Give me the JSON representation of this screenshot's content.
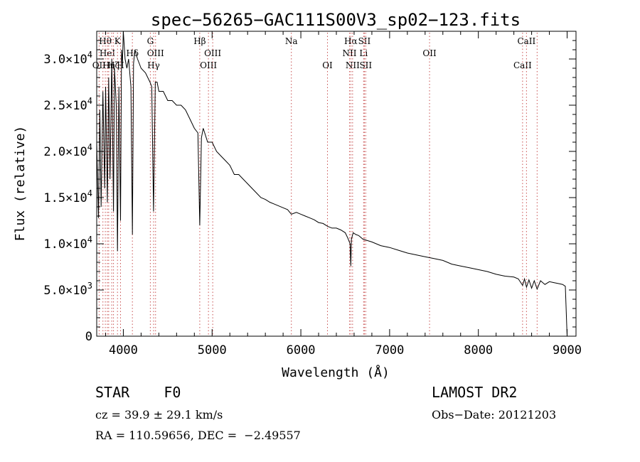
{
  "chart_data": {
    "type": "line",
    "title": "spec−56265−GAC111S00V3_sp02−123.fits",
    "xlabel": "Wavelength (Å)",
    "ylabel": "Flux (relative)",
    "xlim": [
      3700,
      9100
    ],
    "ylim": [
      0,
      33000
    ],
    "x_ticks": [
      4000,
      5000,
      6000,
      7000,
      8000,
      9000
    ],
    "y_ticks": [
      {
        "value": 0,
        "mantissa": "0",
        "exponent": ""
      },
      {
        "value": 5000,
        "mantissa": "5.0×10",
        "exponent": "3"
      },
      {
        "value": 10000,
        "mantissa": "1.0×10",
        "exponent": "4"
      },
      {
        "value": 15000,
        "mantissa": "1.5×10",
        "exponent": "4"
      },
      {
        "value": 20000,
        "mantissa": "2.0×10",
        "exponent": "4"
      },
      {
        "value": 25000,
        "mantissa": "2.5×10",
        "exponent": "4"
      },
      {
        "value": 30000,
        "mantissa": "3.0×10",
        "exponent": "4"
      }
    ],
    "grid": false,
    "line_color": "#000000",
    "marker_color": "#c85050",
    "series": [
      {
        "x": [
          3700,
          3720,
          3735,
          3750,
          3770,
          3790,
          3800,
          3820,
          3835,
          3850,
          3870,
          3889,
          3900,
          3920,
          3934,
          3950,
          3968,
          3980,
          3990,
          4000,
          4020,
          4040,
          4060,
          4085,
          4102,
          4115,
          4130,
          4160,
          4200,
          4250,
          4300,
          4320,
          4340,
          4360,
          4380,
          4400,
          4450,
          4500,
          4550,
          4600,
          4650,
          4700,
          4750,
          4800,
          4840,
          4861,
          4880,
          4900,
          4950,
          5000,
          5050,
          5100,
          5150,
          5200,
          5250,
          5300,
          5350,
          5400,
          5450,
          5500,
          5550,
          5600,
          5650,
          5700,
          5750,
          5800,
          5850,
          5893,
          5950,
          6000,
          6050,
          6100,
          6150,
          6200,
          6250,
          6300,
          6350,
          6400,
          6450,
          6500,
          6530,
          6555,
          6563,
          6570,
          6590,
          6620,
          6650,
          6700,
          6800,
          6900,
          7000,
          7100,
          7200,
          7300,
          7400,
          7500,
          7600,
          7700,
          7800,
          7900,
          8000,
          8100,
          8200,
          8300,
          8400,
          8450,
          8498,
          8520,
          8542,
          8570,
          8600,
          8630,
          8662,
          8700,
          8750,
          8800,
          8850,
          8900,
          8950,
          8980,
          9000
        ],
        "y": [
          21000,
          12800,
          24500,
          14000,
          26500,
          16000,
          27000,
          14500,
          28000,
          17000,
          30000,
          13500,
          29000,
          25000,
          9200,
          27000,
          12500,
          31000,
          29500,
          33000,
          30000,
          29000,
          30000,
          27000,
          11000,
          29500,
          31000,
          30000,
          29000,
          28500,
          27500,
          27000,
          13500,
          27500,
          27500,
          26500,
          26500,
          25500,
          25500,
          25000,
          25000,
          24500,
          23500,
          22500,
          22000,
          12000,
          21500,
          22500,
          21000,
          21000,
          20000,
          19500,
          19000,
          18500,
          17500,
          17500,
          17000,
          16500,
          16000,
          15500,
          15000,
          14800,
          14500,
          14300,
          14100,
          13900,
          13700,
          13200,
          13400,
          13200,
          13000,
          12800,
          12600,
          12300,
          12200,
          11900,
          11700,
          11700,
          11500,
          11200,
          10600,
          10000,
          7600,
          10500,
          11200,
          11000,
          10900,
          10500,
          10200,
          9800,
          9600,
          9300,
          9000,
          8800,
          8600,
          8400,
          8200,
          7800,
          7600,
          7400,
          7200,
          7000,
          6700,
          6500,
          6400,
          6200,
          5500,
          6200,
          5300,
          6100,
          5200,
          6000,
          5100,
          6000,
          5600,
          5900,
          5800,
          5700,
          5600,
          5400,
          0
        ]
      }
    ],
    "line_markers": [
      {
        "x": 3727,
        "row": 3,
        "label": "OII"
      },
      {
        "x": 3770,
        "row": 1,
        "label": ""
      },
      {
        "x": 3797,
        "row": 1,
        "label": "Hθ"
      },
      {
        "x": 3820,
        "row": 2,
        "label": "HeI"
      },
      {
        "x": 3835,
        "row": 3,
        "label": "Hη"
      },
      {
        "x": 3869,
        "row": 3,
        "label": ""
      },
      {
        "x": 3889,
        "row": 3,
        "label": "Hζ"
      },
      {
        "x": 3934,
        "row": 1,
        "label": "K"
      },
      {
        "x": 3968,
        "row": 3,
        "label": "H"
      },
      {
        "x": 4102,
        "row": 2,
        "label": "Hδ"
      },
      {
        "x": 4304,
        "row": 1,
        "label": "G"
      },
      {
        "x": 4341,
        "row": 3,
        "label": "Hγ"
      },
      {
        "x": 4363,
        "row": 2,
        "label": "OIII"
      },
      {
        "x": 4861,
        "row": 1,
        "label": "Hβ"
      },
      {
        "x": 4959,
        "row": 3,
        "label": "OIII"
      },
      {
        "x": 5007,
        "row": 2,
        "label": "OIII"
      },
      {
        "x": 5893,
        "row": 1,
        "label": "Na"
      },
      {
        "x": 6300,
        "row": 3,
        "label": "OI"
      },
      {
        "x": 6548,
        "row": 2,
        "label": "NII"
      },
      {
        "x": 6563,
        "row": 1,
        "label": "Hα"
      },
      {
        "x": 6583,
        "row": 3,
        "label": "NII"
      },
      {
        "x": 6707,
        "row": 2,
        "label": "Li"
      },
      {
        "x": 6716,
        "row": 1,
        "label": "SII"
      },
      {
        "x": 6731,
        "row": 3,
        "label": "SII"
      },
      {
        "x": 7450,
        "row": 2,
        "label": "OII"
      },
      {
        "x": 8498,
        "row": 3,
        "label": "CaII"
      },
      {
        "x": 8542,
        "row": 1,
        "label": "CaII"
      },
      {
        "x": 8662,
        "row": 1,
        "label": ""
      }
    ]
  },
  "info": {
    "class_line": "STAR    F0",
    "survey": "LAMOST DR2",
    "cz_line": "cz = 39.9 ± 29.1 km/s",
    "obs_date": "Obs−Date: 20121203",
    "radec_line": "RA = 110.59656, DEC =  −2.49557"
  }
}
